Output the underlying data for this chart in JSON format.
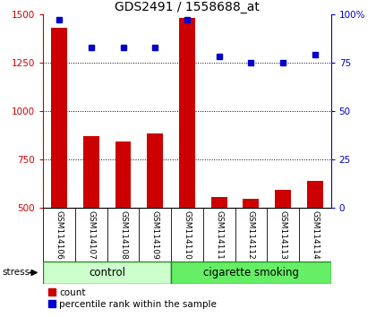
{
  "title": "GDS2491 / 1558688_at",
  "samples": [
    "GSM114106",
    "GSM114107",
    "GSM114108",
    "GSM114109",
    "GSM114110",
    "GSM114111",
    "GSM114112",
    "GSM114113",
    "GSM114114"
  ],
  "counts": [
    1430,
    870,
    840,
    885,
    1480,
    555,
    545,
    590,
    640
  ],
  "percentiles": [
    97,
    83,
    83,
    83,
    97,
    78,
    75,
    75,
    79
  ],
  "bar_color": "#cc0000",
  "dot_color": "#0000cc",
  "ylim_left": [
    500,
    1500
  ],
  "ylim_right": [
    0,
    100
  ],
  "yticks_left": [
    500,
    750,
    1000,
    1250,
    1500
  ],
  "yticks_right": [
    0,
    25,
    50,
    75,
    100
  ],
  "ytick_right_labels": [
    "0",
    "25",
    "50",
    "75",
    "100%"
  ],
  "grid_values": [
    750,
    1000,
    1250
  ],
  "tick_label_fontsize": 7.5,
  "title_fontsize": 10,
  "group_label_fontsize": 8.5,
  "legend_fontsize": 7.5,
  "sample_fontsize": 6.5,
  "stress_label": "stress",
  "control_label": "control",
  "smoking_label": "cigarette smoking",
  "control_color": "#ccffcc",
  "smoking_color": "#66ee66",
  "sample_bg": "#d4d4d4",
  "n_control": 4,
  "n_smoking": 5
}
